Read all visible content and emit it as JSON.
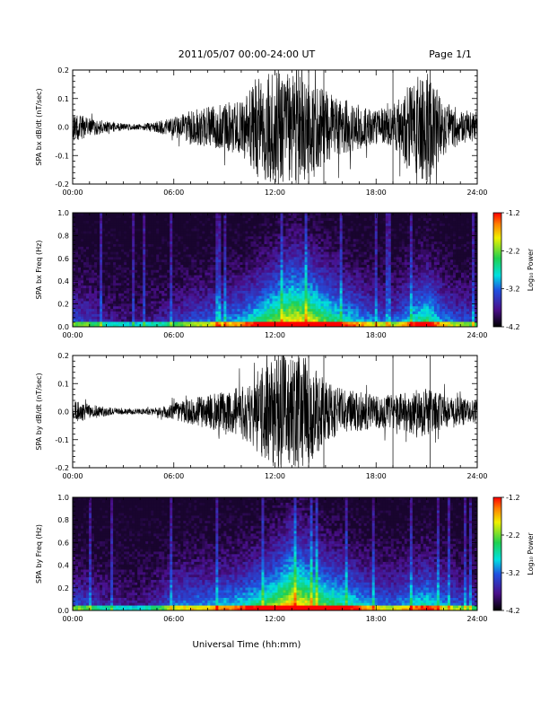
{
  "header": {
    "title": "2011/05/07  00:00-24:00 UT",
    "page": "Page 1/1"
  },
  "colors": {
    "trace": "#000000",
    "spectrogram_background": "#2a0a4a",
    "colorbar_stops": [
      "#000000",
      "#4a0f8a",
      "#2050e0",
      "#00e0e0",
      "#20d050",
      "#f0f000",
      "#ff8000",
      "#ff0000"
    ]
  },
  "chart_data": [
    {
      "type": "line",
      "ylabel": "SPA bx dB/dt (nT/sec)",
      "xlim": [
        0,
        24
      ],
      "ylim": [
        -0.2,
        0.2
      ],
      "x_ticks": [
        "00:00",
        "06:00",
        "12:00",
        "18:00",
        "24:00"
      ],
      "y_ticks": [
        "0.2",
        "0.1",
        "0.0",
        "-0.1",
        "-0.2"
      ],
      "envelope": {
        "hours": [
          0,
          1,
          2,
          3,
          4,
          5,
          6,
          7,
          8,
          9,
          10,
          11,
          12,
          13,
          14,
          15,
          16,
          17,
          18,
          19,
          20,
          21,
          22,
          23,
          24
        ],
        "amplitude": [
          0.05,
          0.035,
          0.02,
          0.012,
          0.01,
          0.02,
          0.035,
          0.06,
          0.07,
          0.08,
          0.1,
          0.18,
          0.2,
          0.2,
          0.2,
          0.12,
          0.1,
          0.08,
          0.06,
          0.07,
          0.16,
          0.2,
          0.1,
          0.06,
          0.05
        ]
      }
    },
    {
      "type": "heatmap",
      "ylabel": "SPA bx Freq (Hz)",
      "xlim": [
        0,
        24
      ],
      "ylim": [
        0,
        1.0
      ],
      "x_ticks": [
        "00:00",
        "06:00",
        "12:00",
        "18:00",
        "24:00"
      ],
      "y_ticks": [
        "1.0",
        "0.8",
        "0.6",
        "0.4",
        "0.2",
        "0.0"
      ],
      "colorbar": {
        "label": "Log₁₀ Power",
        "range": [
          -4.2,
          -1.2
        ],
        "ticks": [
          "-1.2",
          "-2.2",
          "-3.2",
          "-4.2"
        ]
      },
      "activity": {
        "hours": [
          0,
          1,
          2,
          3,
          4,
          5,
          6,
          7,
          8,
          9,
          10,
          11,
          12,
          13,
          14,
          15,
          16,
          17,
          18,
          19,
          20,
          21,
          22,
          23,
          24
        ],
        "level": [
          0.3,
          0.25,
          0.15,
          0.1,
          0.1,
          0.15,
          0.2,
          0.3,
          0.35,
          0.4,
          0.45,
          0.6,
          0.75,
          0.9,
          0.85,
          0.7,
          0.55,
          0.45,
          0.35,
          0.3,
          0.5,
          0.65,
          0.4,
          0.3,
          0.25
        ]
      }
    },
    {
      "type": "line",
      "ylabel": "SPA by dB/dt (nT/sec)",
      "xlim": [
        0,
        24
      ],
      "ylim": [
        -0.2,
        0.2
      ],
      "x_ticks": [
        "00:00",
        "06:00",
        "12:00",
        "18:00",
        "24:00"
      ],
      "y_ticks": [
        "0.2",
        "0.1",
        "0.0",
        "-0.1",
        "-0.2"
      ],
      "envelope": {
        "hours": [
          0,
          1,
          2,
          3,
          4,
          5,
          6,
          7,
          8,
          9,
          10,
          11,
          12,
          13,
          14,
          15,
          16,
          17,
          18,
          19,
          20,
          21,
          22,
          23,
          24
        ],
        "amplitude": [
          0.04,
          0.03,
          0.015,
          0.01,
          0.01,
          0.015,
          0.03,
          0.05,
          0.06,
          0.07,
          0.09,
          0.15,
          0.2,
          0.2,
          0.19,
          0.11,
          0.08,
          0.07,
          0.06,
          0.06,
          0.08,
          0.09,
          0.06,
          0.05,
          0.04
        ]
      }
    },
    {
      "type": "heatmap",
      "ylabel": "SPA by Freq (Hz)",
      "xlim": [
        0,
        24
      ],
      "ylim": [
        0,
        1.0
      ],
      "x_ticks": [
        "00:00",
        "06:00",
        "12:00",
        "18:00",
        "24:00"
      ],
      "y_ticks": [
        "1.0",
        "0.8",
        "0.6",
        "0.4",
        "0.2",
        "0.0"
      ],
      "colorbar": {
        "label": "Log₁₀ Power",
        "range": [
          -4.2,
          -1.2
        ],
        "ticks": [
          "-1.2",
          "-2.2",
          "-3.2",
          "-4.2"
        ]
      },
      "activity": {
        "hours": [
          0,
          1,
          2,
          3,
          4,
          5,
          6,
          7,
          8,
          9,
          10,
          11,
          12,
          13,
          14,
          15,
          16,
          17,
          18,
          19,
          20,
          21,
          22,
          23,
          24
        ],
        "level": [
          0.3,
          0.25,
          0.15,
          0.12,
          0.1,
          0.2,
          0.35,
          0.4,
          0.4,
          0.45,
          0.5,
          0.6,
          0.75,
          0.95,
          0.85,
          0.7,
          0.6,
          0.5,
          0.4,
          0.35,
          0.45,
          0.55,
          0.4,
          0.3,
          0.25
        ]
      }
    }
  ],
  "xlabel": "Universal Time (hh:mm)"
}
